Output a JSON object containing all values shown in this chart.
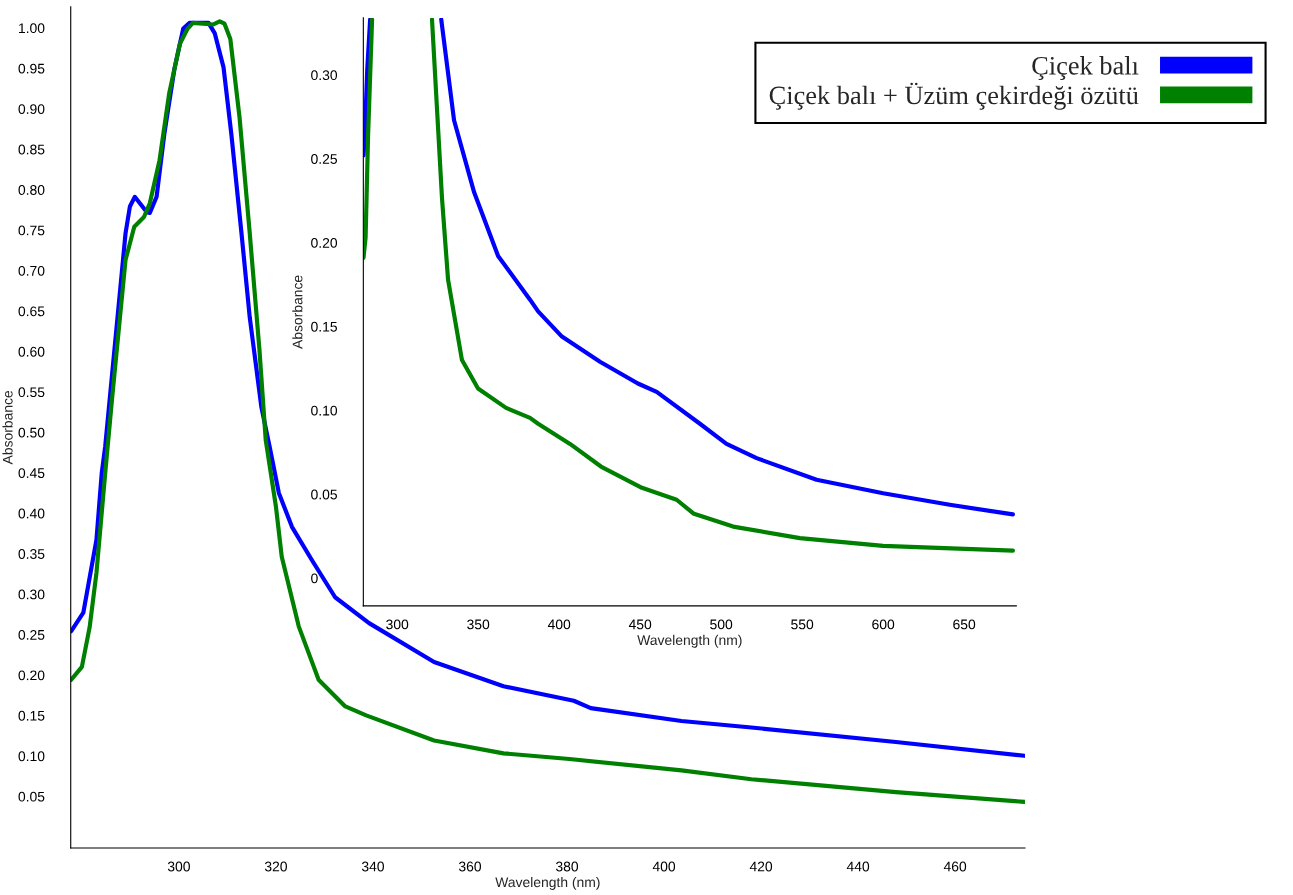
{
  "chart_data": [
    {
      "type": "line",
      "xlabel": "Wavelength (nm)",
      "ylabel": "Absorbance",
      "xlim": [
        277.7,
        474.4
      ],
      "ylim": [
        -0.02,
        1.02
      ],
      "xticks": [
        300,
        320,
        340,
        360,
        380,
        400,
        420,
        440,
        460
      ],
      "yticks": [
        {
          "value": 0.05,
          "label": "0.05"
        },
        {
          "value": 0.1,
          "label": "0.10"
        },
        {
          "value": 0.15,
          "label": "0.15"
        },
        {
          "value": 0.2,
          "label": "0.20"
        },
        {
          "value": 0.25,
          "label": "0.25"
        },
        {
          "value": 0.3,
          "label": "0.30"
        },
        {
          "value": 0.35,
          "label": "0.35"
        },
        {
          "value": 0.4,
          "label": "0.40"
        },
        {
          "value": 0.45,
          "label": "0.45"
        },
        {
          "value": 0.5,
          "label": "0.50"
        },
        {
          "value": 0.55,
          "label": "0.55"
        },
        {
          "value": 0.6,
          "label": "0.60"
        },
        {
          "value": 0.65,
          "label": "0.65"
        },
        {
          "value": 0.7,
          "label": "0.70"
        },
        {
          "value": 0.75,
          "label": "0.75"
        },
        {
          "value": 0.8,
          "label": "0.80"
        },
        {
          "value": 0.85,
          "label": "0.85"
        },
        {
          "value": 0.9,
          "label": "0.90"
        },
        {
          "value": 0.95,
          "label": "0.95"
        },
        {
          "value": 1.0,
          "label": "1.00"
        }
      ],
      "legend": "top right",
      "grid": false,
      "line_style": "solid",
      "series": [
        {
          "name": "Çiçek balı",
          "color": "#0000ff",
          "x": [
            277.8,
            280.3,
            283.0,
            284.1,
            284.8,
            289.0,
            289.9,
            290.9,
            293.4,
            294.0,
            295.4,
            297.0,
            299.1,
            300.9,
            302.2,
            306.1,
            307.4,
            309.2,
            310.8,
            312.9,
            314.6,
            317.0,
            318.7,
            320.6,
            323.3,
            327.4,
            332.2,
            339.2,
            352.6,
            366.9,
            381.4,
            384.9,
            403.6,
            418.0,
            447.8,
            474.3
          ],
          "values": [
            0.248,
            0.271,
            0.361,
            0.444,
            0.476,
            0.74,
            0.773,
            0.785,
            0.766,
            0.765,
            0.785,
            0.863,
            0.944,
            0.993,
            1.0,
            1.0,
            0.987,
            0.945,
            0.863,
            0.74,
            0.636,
            0.525,
            0.476,
            0.419,
            0.377,
            0.336,
            0.29,
            0.258,
            0.21,
            0.18,
            0.162,
            0.153,
            0.137,
            0.129,
            0.111,
            0.094
          ]
        },
        {
          "name": "Çiçek balı + Üzüm çekirdeği özütü",
          "color": "#008000",
          "x": [
            277.8,
            280.0,
            281.6,
            283.0,
            284.8,
            286.2,
            289.0,
            290.8,
            292.8,
            294.0,
            296.0,
            298.0,
            300.2,
            301.8,
            302.9,
            307.0,
            308.4,
            309.4,
            310.6,
            312.5,
            314.6,
            316.6,
            317.9,
            320.0,
            321.2,
            324.7,
            328.8,
            334.3,
            338.6,
            352.6,
            366.9,
            380.5,
            403.6,
            418.0,
            447.8,
            474.3
          ],
          "values": [
            0.188,
            0.204,
            0.253,
            0.32,
            0.443,
            0.534,
            0.707,
            0.748,
            0.76,
            0.777,
            0.83,
            0.913,
            0.974,
            0.993,
            1.0,
            0.998,
            1.002,
            0.999,
            0.98,
            0.883,
            0.74,
            0.596,
            0.484,
            0.402,
            0.34,
            0.254,
            0.188,
            0.155,
            0.144,
            0.113,
            0.097,
            0.09,
            0.076,
            0.065,
            0.049,
            0.037
          ]
        }
      ]
    },
    {
      "type": "line",
      "xlabel": "Wavelength (nm)",
      "ylabel": "Absorbance",
      "xlim": [
        279.1,
        682.2
      ],
      "ylim": [
        -0.0196,
        0.331
      ],
      "xticks": [
        300,
        350,
        400,
        450,
        500,
        550,
        600,
        650
      ],
      "yticks": [
        0,
        {
          "value": 0.05,
          "label": "0.05"
        },
        {
          "value": 0.1,
          "label": "0.10"
        },
        {
          "value": 0.15,
          "label": "0.15"
        },
        {
          "value": 0.2,
          "label": "0.20"
        },
        {
          "value": 0.25,
          "label": "0.25"
        },
        {
          "value": 0.3,
          "label": "0.30"
        }
      ],
      "grid": false,
      "line_style": "solid",
      "series": [
        {
          "color": "#0000ff",
          "x": [
            279.2,
            280.0,
            281.5,
            283.3,
            300.0,
            327.2,
            335.1,
            347.5,
            362.3,
            382.0,
            387.0,
            401.7,
            425.2,
            448.6,
            460.2,
            486.9,
            503.3,
            521.9,
            558.9,
            600.0,
            641.1,
            680.1
          ],
          "values": [
            0.249,
            0.26,
            0.3,
            0.33,
            null,
            0.33,
            0.27,
            0.227,
            0.189,
            0.163,
            0.156,
            0.141,
            0.126,
            0.113,
            0.108,
            0.089,
            0.077,
            0.0685,
            0.0556,
            0.0476,
            0.0407,
            0.035
          ]
        },
        {
          "color": "#008000",
          "x": [
            279.2,
            280.5,
            282.0,
            284.5,
            300.0,
            321.5,
            327.7,
            331.4,
            340.0,
            349.9,
            367.2,
            382.0,
            387.0,
            406.7,
            425.8,
            451.1,
            472.5,
            483.2,
            507.4,
            548.6,
            600.0,
            680.1
          ],
          "values": [
            0.188,
            0.2,
            0.26,
            0.33,
            null,
            0.33,
            0.223,
            0.175,
            0.127,
            0.11,
            0.0985,
            0.0925,
            0.089,
            0.077,
            0.0635,
            0.0508,
            0.0437,
            0.0353,
            0.0277,
            0.0208,
            0.0162,
            0.0134
          ]
        }
      ]
    }
  ]
}
